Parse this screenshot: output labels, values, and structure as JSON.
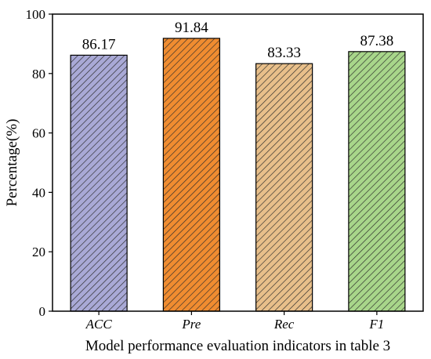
{
  "chart_data": {
    "type": "bar",
    "categories": [
      "ACC",
      "Pre",
      "Rec",
      "F1"
    ],
    "values": [
      86.17,
      91.84,
      83.33,
      87.38
    ],
    "value_labels": [
      "86.17",
      "91.84",
      "83.33",
      "87.38"
    ],
    "xlabel": "Model performance evaluation indicators in table 3",
    "ylabel": "Percentage(%)",
    "ylim": [
      0,
      100
    ],
    "yticks": [
      0,
      20,
      40,
      60,
      80,
      100
    ],
    "grid": false,
    "legend": "none",
    "colors": [
      "#a9a9d6",
      "#f08c30",
      "#e8bf8a",
      "#a8d68a"
    ],
    "hatch": "diagonal"
  }
}
